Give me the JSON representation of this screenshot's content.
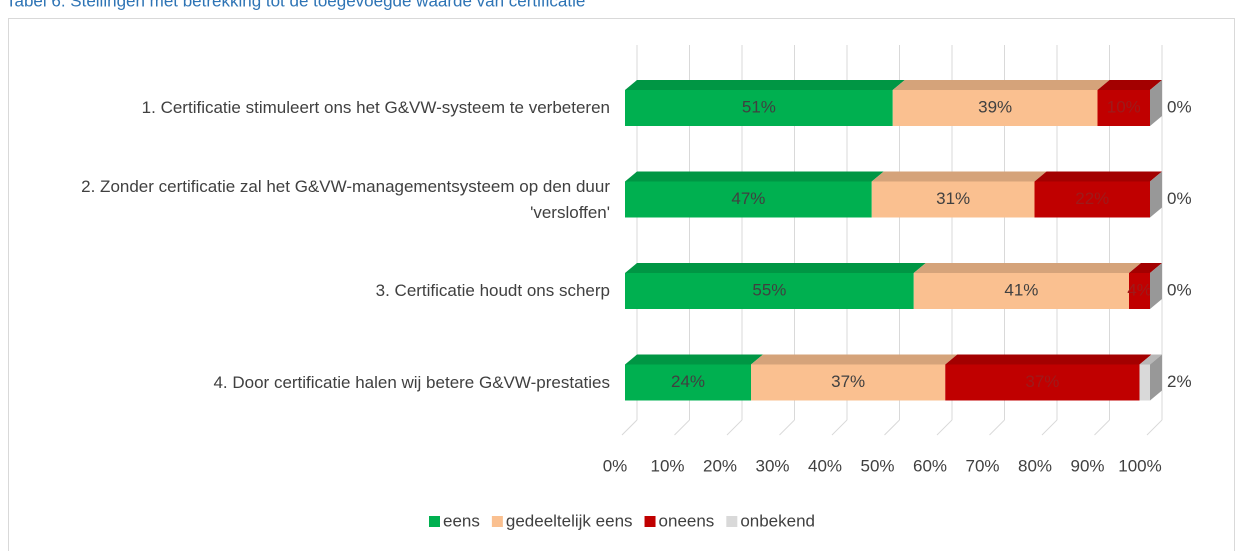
{
  "chart_data": {
    "type": "bar",
    "orientation": "horizontal",
    "stacked": true,
    "title": "Tabel 6.    Stellingen met betrekking tot de toegevoegde waarde van certificatie",
    "categories": [
      "1. Certificatie stimuleert ons het G&VW-systeem te verbeteren",
      "2. Zonder certificatie zal het G&VW-managementsysteem op den duur 'versloffen'",
      "3. Certificatie houdt ons scherp",
      "4. Door certificatie halen wij betere G&VW-prestaties"
    ],
    "series": [
      {
        "name": "eens",
        "color": "#00b050",
        "values": [
          51,
          47,
          55,
          24
        ],
        "value_labels": [
          "51%",
          "47%",
          "55%",
          "24%"
        ]
      },
      {
        "name": "gedeeltelijk eens",
        "color": "#fac090",
        "values": [
          39,
          31,
          41,
          37
        ],
        "value_labels": [
          "39%",
          "31%",
          "41%",
          "37%"
        ]
      },
      {
        "name": "oneens",
        "color": "#c00000",
        "values": [
          10,
          22,
          4,
          37
        ],
        "value_labels": [
          "10%",
          "22%",
          "4%",
          "37%"
        ]
      },
      {
        "name": "onbekend",
        "color": "#d9d9d9",
        "values": [
          0,
          0,
          0,
          2
        ],
        "value_labels": [
          "0%",
          "0%",
          "0%",
          "2%"
        ]
      }
    ],
    "xlim": [
      0,
      100
    ],
    "xticks": [
      {
        "value": 0,
        "label": "0%"
      },
      {
        "value": 10,
        "label": "10%"
      },
      {
        "value": 20,
        "label": "20%"
      },
      {
        "value": 30,
        "label": "30%"
      },
      {
        "value": 40,
        "label": "40%"
      },
      {
        "value": 50,
        "label": "50%"
      },
      {
        "value": 60,
        "label": "60%"
      },
      {
        "value": 70,
        "label": "70%"
      },
      {
        "value": 80,
        "label": "80%"
      },
      {
        "value": 90,
        "label": "90%"
      },
      {
        "value": 100,
        "label": "100%"
      }
    ],
    "grid": true,
    "legend": "bottom"
  }
}
